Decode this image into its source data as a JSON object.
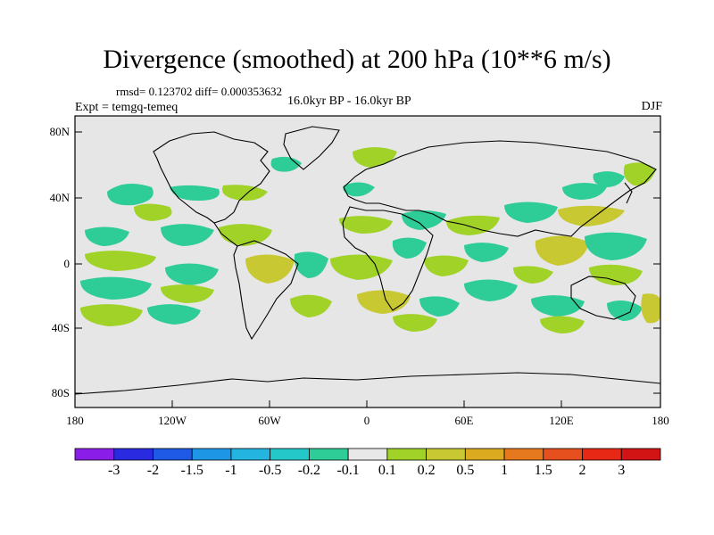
{
  "title": "Divergence (smoothed) at 200 hPa (10**6 m/s)",
  "stats": "rmsd= 0.123702 diff= 0.000353632",
  "expt": "Expt = temgq-temeq",
  "period": "16.0kyr BP - 16.0kyr BP",
  "season": "DJF",
  "y_ticks": [
    "80N",
    "40N",
    "0",
    "40S",
    "80S"
  ],
  "x_ticks": [
    "180",
    "120W",
    "60W",
    "0",
    "60E",
    "120E",
    "180"
  ],
  "colorbar": {
    "labels": [
      "-3",
      "-2",
      "-1.5",
      "-1",
      "-0.5",
      "-0.2",
      "-0.1",
      "0.1",
      "0.2",
      "0.5",
      "1",
      "1.5",
      "2",
      "3"
    ],
    "colors": [
      "#8a1ee8",
      "#2a2ae0",
      "#1e5ae6",
      "#1e96e6",
      "#24b4e0",
      "#24c8c8",
      "#2ecc96",
      "#e8e8e8",
      "#a0d228",
      "#c8c832",
      "#dcaa1e",
      "#e6781e",
      "#e6501e",
      "#e62814",
      "#d21414"
    ]
  },
  "colors": {
    "background_field": "#e6e6e6",
    "coast": "#000000"
  }
}
